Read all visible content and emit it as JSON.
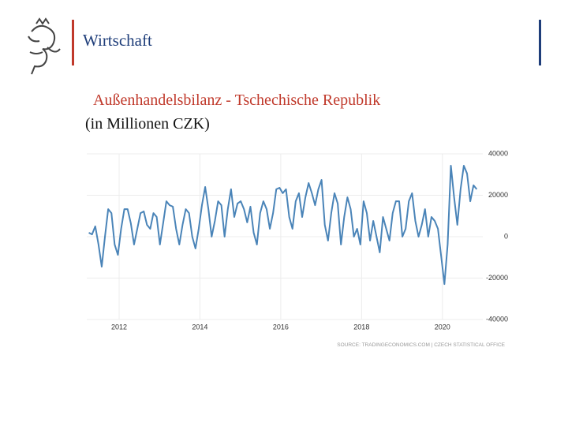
{
  "header": {
    "title": "Wirtschaft"
  },
  "chart_data": {
    "type": "line",
    "title": "Außenhandelsbilanz - Tschechische Republik",
    "subtitle": "(in Millionen CZK)",
    "source": "SOURCE: TRADINGECONOMICS.COM | CZECH STATISTICAL OFFICE",
    "x": [
      2011.25,
      2011.33,
      2011.41,
      2011.49,
      2011.57,
      2011.65,
      2011.73,
      2011.81,
      2011.89,
      2011.97,
      2012.05,
      2012.13,
      2012.21,
      2012.29,
      2012.37,
      2012.45,
      2012.53,
      2012.61,
      2012.69,
      2012.77,
      2012.85,
      2012.93,
      2013.01,
      2013.09,
      2013.17,
      2013.25,
      2013.33,
      2013.41,
      2013.49,
      2013.57,
      2013.65,
      2013.73,
      2013.81,
      2013.89,
      2013.97,
      2014.05,
      2014.13,
      2014.21,
      2014.29,
      2014.37,
      2014.45,
      2014.53,
      2014.61,
      2014.69,
      2014.77,
      2014.85,
      2014.93,
      2015.01,
      2015.09,
      2015.17,
      2015.25,
      2015.33,
      2015.41,
      2015.49,
      2015.57,
      2015.65,
      2015.73,
      2015.81,
      2015.89,
      2015.97,
      2016.05,
      2016.13,
      2016.21,
      2016.29,
      2016.37,
      2016.45,
      2016.53,
      2016.61,
      2016.69,
      2016.77,
      2016.85,
      2016.93,
      2017.01,
      2017.09,
      2017.17,
      2017.25,
      2017.33,
      2017.41,
      2017.49,
      2017.57,
      2017.65,
      2017.73,
      2017.81,
      2017.89,
      2017.97,
      2018.05,
      2018.13,
      2018.21,
      2018.29,
      2018.37,
      2018.45,
      2018.53,
      2018.61,
      2018.69,
      2018.77,
      2018.85,
      2018.93,
      2019.01,
      2019.09,
      2019.17,
      2019.25,
      2019.33,
      2019.41,
      2019.49,
      2019.57,
      2019.65,
      2019.73,
      2019.81,
      2019.89,
      2019.97,
      2020.05,
      2020.13,
      2020.21,
      2020.29,
      2020.37,
      2020.45,
      2020.53,
      2020.61,
      2020.69,
      2020.77,
      2020.85
    ],
    "series": [
      {
        "name": "Außenhandelsbilanz",
        "color": "#4a84b8",
        "values": [
          1900,
          1100,
          5000,
          -3800,
          -14500,
          0,
          13300,
          11400,
          -3800,
          -8800,
          3800,
          13300,
          13300,
          6500,
          -3800,
          3800,
          11400,
          12200,
          5700,
          3800,
          11400,
          9500,
          -3800,
          6500,
          17100,
          15200,
          14500,
          3800,
          -3800,
          5700,
          13300,
          11400,
          0,
          -5700,
          3800,
          15200,
          24000,
          13300,
          0,
          7600,
          17100,
          15200,
          0,
          13300,
          22900,
          9500,
          16000,
          17100,
          13300,
          6900,
          14500,
          1900,
          -3800,
          11400,
          17100,
          13300,
          3800,
          11400,
          22900,
          23600,
          21000,
          22900,
          9500,
          3800,
          17100,
          21000,
          9500,
          19000,
          25900,
          21000,
          15200,
          22900,
          27400,
          5700,
          -1900,
          11400,
          21000,
          16000,
          -3800,
          9500,
          19000,
          13300,
          0,
          3800,
          -3800,
          17100,
          11400,
          -1900,
          7600,
          0,
          -7600,
          9500,
          3800,
          -1900,
          11400,
          17100,
          17100,
          0,
          3800,
          17100,
          21000,
          7600,
          0,
          5700,
          13300,
          0,
          9500,
          7600,
          3800,
          -9500,
          -22900,
          -3800,
          34300,
          19000,
          5700,
          22900,
          34300,
          30500,
          17100,
          24800,
          22900
        ]
      }
    ],
    "xlim": [
      2011.2,
      2021.0
    ],
    "xticks": [
      2012,
      2014,
      2016,
      2018,
      2020
    ],
    "ylim": [
      -40000,
      40000
    ],
    "yticks": [
      -40000,
      -20000,
      0,
      20000,
      40000
    ],
    "grid": true
  }
}
